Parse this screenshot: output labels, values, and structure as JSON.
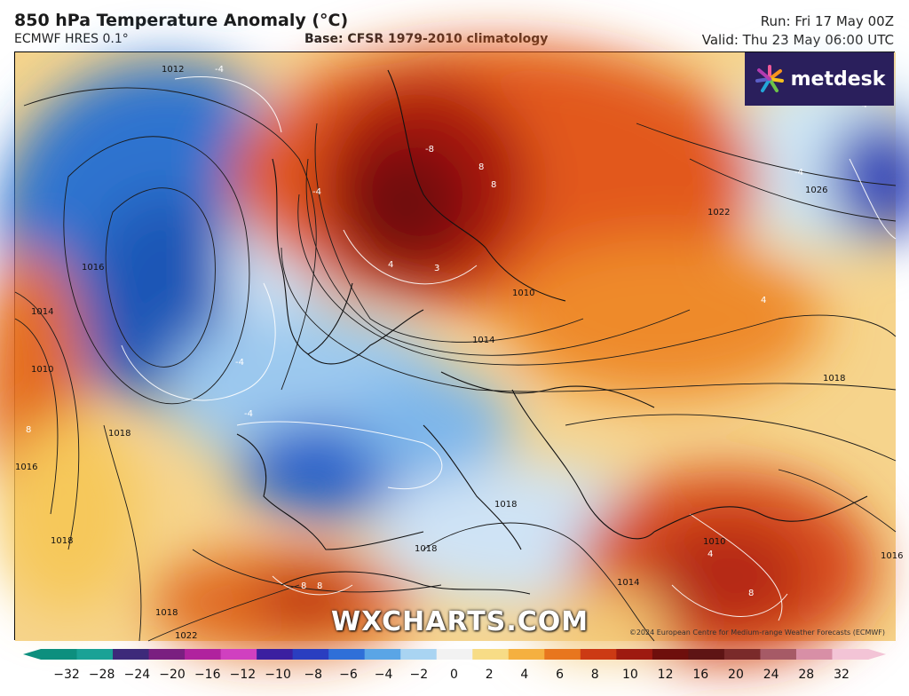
{
  "header": {
    "title": "850 hPa Temperature Anomaly (°C)",
    "model": "ECMWF HRES 0.1°",
    "base": "Base: CFSR 1979-2010 climatology",
    "run": "Run: Fri 17 May 00Z",
    "valid": "Valid: Thu 23 May 06:00 UTC"
  },
  "logo": {
    "name": "metdesk",
    "icon": "spark-logo-icon"
  },
  "watermark": "WXCHARTS.COM",
  "copyright": "©2024 European Centre for Medium-range Weather Forecasts (ECMWF)",
  "map": {
    "isobars": [
      "1012",
      "1016",
      "1026",
      "1014",
      "1010",
      "1022",
      "1018",
      "1016",
      "1010",
      "1014",
      "1018",
      "1018",
      "1018",
      "1018",
      "1010",
      "1014",
      "1018",
      "1022",
      "1016"
    ],
    "anomaly_labels": [
      "-4",
      "-4",
      "-4",
      "-4",
      "-4",
      "-4",
      "-8",
      "8",
      "8",
      "3",
      "4",
      "4",
      "4",
      "8",
      "8",
      "8",
      "8"
    ]
  },
  "colorbar": {
    "ticks": [
      "−32",
      "−28",
      "−24",
      "−20",
      "−16",
      "−12",
      "−10",
      "−8",
      "−6",
      "−4",
      "−2",
      "0",
      "2",
      "4",
      "6",
      "8",
      "10",
      "12",
      "16",
      "20",
      "24",
      "28",
      "32"
    ],
    "colors": [
      "#0d8f7e",
      "#1aa296",
      "#3d2a7a",
      "#7a1f80",
      "#b0229e",
      "#d040c0",
      "#3b1fa0",
      "#2a3ec0",
      "#2f6fd8",
      "#5aa5e6",
      "#a9d4f2",
      "#f2f2f2",
      "#f7dc86",
      "#f5b040",
      "#e8761e",
      "#cc3a14",
      "#9e1a10",
      "#6e0f0c",
      "#5e1414",
      "#7a2a2a",
      "#a65a66",
      "#d88fa6",
      "#f3c4d6"
    ]
  }
}
